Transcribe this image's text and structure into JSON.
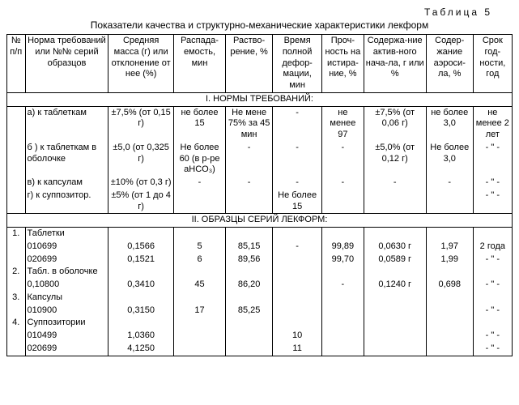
{
  "table_label": "Таблица 5",
  "caption": "Показатели качества и структурно-механические характеристики лекформ",
  "headers": [
    "№ п/п",
    "Норма требований или №№ серий образцов",
    "Средняя масса (г) или отклонение от нее (%)",
    "Распада-емость, мин",
    "Раство-рение, %",
    "Время полной дефор-мации, мин",
    "Проч-ность на истира-ние, %",
    "Содержа-ние актив-ного нача-ла, г или %",
    "Содер-жание аэроси-ла, %",
    "Срок год-ности, год"
  ],
  "section1": "I. НОРМЫ ТРЕБОВАНИЙ:",
  "norm_rows": [
    {
      "label": "а) к таблеткам",
      "mass": "±7,5% (от 0,15 г)",
      "disint": "не более 15",
      "dissol": "Не мене 75% за 45 мин",
      "deform": "-",
      "abras": "не менее 97",
      "active": "±7,5% (от 0,06 г)",
      "aerosil": "не более 3,0",
      "shelf": "не менее 2 лет"
    },
    {
      "label": "б ) к таблеткам в оболочке",
      "mass": "±5,0 (от 0,325 г)",
      "disint": "Не более 60 (в р-ре aHCO₃)",
      "dissol": "-",
      "deform": "-",
      "abras": "-",
      "active": "±5,0% (от 0,12 г)",
      "aerosil": "Не более 3,0",
      "shelf": "- \" -"
    },
    {
      "label": "в) к капсулам",
      "mass": "±10% (от 0,3 г)",
      "disint": "-",
      "dissol": "-",
      "deform": "-",
      "abras": "-",
      "active": "-",
      "aerosil": "-",
      "shelf": "- \" -"
    },
    {
      "label": "г) к суппозитор.",
      "mass": "±5% (от 1 до 4 г)",
      "disint": "",
      "dissol": "",
      "deform": "Не более 15",
      "abras": "",
      "active": "",
      "aerosil": "",
      "shelf": "- \" -"
    }
  ],
  "section2": "II. ОБРАЗЦЫ СЕРИЙ ЛЕКФОРМ:",
  "sample_blocks": [
    {
      "num": "1.",
      "name": "Таблетки",
      "rows": [
        [
          "010699",
          "0,1566",
          "5",
          "85,15",
          "-",
          "99,89",
          "0,0630 г",
          "1,97",
          "2 года"
        ],
        [
          "020699",
          "0,1521",
          "6",
          "89,56",
          "",
          "99,70",
          "0,0589 г",
          "1,99",
          "- \" -"
        ]
      ]
    },
    {
      "num": "2.",
      "name": "Табл. в оболочке",
      "rows": [
        [
          "0,10800",
          "0,3410",
          "45",
          "86,20",
          "",
          "-",
          "0,1240 г",
          "0,698",
          "- \" -"
        ]
      ]
    },
    {
      "num": "3.",
      "name": "Капсулы",
      "rows": [
        [
          "010900",
          "0,3150",
          "17",
          "85,25",
          "",
          "",
          "",
          "",
          "- \" -"
        ]
      ]
    },
    {
      "num": "4.",
      "name": "Суппозитории",
      "rows": [
        [
          "010499",
          "1,0360",
          "",
          "",
          "10",
          "",
          "",
          "",
          "- \" -"
        ],
        [
          "020699",
          "4,1250",
          "",
          "",
          "11",
          "",
          "",
          "",
          "- \" -"
        ]
      ]
    }
  ]
}
